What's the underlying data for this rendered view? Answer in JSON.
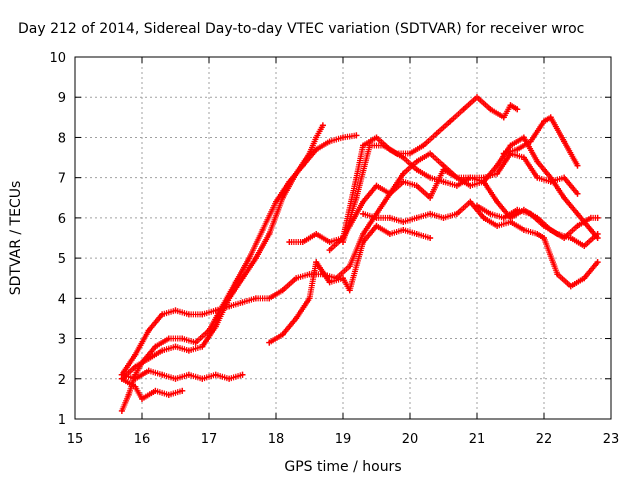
{
  "chart_data": {
    "type": "scatter",
    "title": "Day 212 of 2014, Sidereal Day-to-day VTEC variation (SDTVAR) for receiver wroc",
    "xlabel": "GPS time / hours",
    "ylabel": "SDTVAR / TECUs",
    "xlim": [
      15,
      23
    ],
    "ylim": [
      1,
      10
    ],
    "xticks": [
      "15",
      "16",
      "17",
      "18",
      "19",
      "20",
      "21",
      "22",
      "23"
    ],
    "yticks": [
      "1",
      "2",
      "3",
      "4",
      "5",
      "6",
      "7",
      "8",
      "9",
      "10"
    ],
    "grid": true,
    "marker": "+",
    "color": "#ff0000",
    "series": [
      {
        "name": "trace-1",
        "points": [
          [
            15.7,
            1.2
          ],
          [
            15.8,
            1.6
          ],
          [
            15.9,
            2.1
          ],
          [
            16.0,
            2.4
          ],
          [
            16.2,
            2.8
          ],
          [
            16.4,
            3.0
          ],
          [
            16.6,
            3.0
          ],
          [
            16.8,
            2.9
          ],
          [
            17.0,
            3.2
          ],
          [
            17.2,
            3.8
          ],
          [
            17.4,
            4.4
          ],
          [
            17.6,
            5.0
          ],
          [
            17.8,
            5.7
          ],
          [
            18.0,
            6.4
          ],
          [
            18.2,
            6.9
          ],
          [
            18.4,
            7.3
          ],
          [
            18.6,
            7.7
          ],
          [
            18.8,
            7.9
          ],
          [
            19.0,
            8.0
          ],
          [
            19.2,
            8.05
          ]
        ]
      },
      {
        "name": "trace-2",
        "points": [
          [
            15.7,
            2.1
          ],
          [
            15.9,
            2.6
          ],
          [
            16.1,
            3.2
          ],
          [
            16.3,
            3.6
          ],
          [
            16.5,
            3.7
          ],
          [
            16.7,
            3.6
          ],
          [
            16.9,
            3.6
          ],
          [
            17.1,
            3.7
          ],
          [
            17.3,
            3.8
          ],
          [
            17.5,
            3.9
          ],
          [
            17.7,
            4.0
          ],
          [
            17.9,
            4.0
          ],
          [
            18.1,
            4.2
          ],
          [
            18.3,
            4.5
          ],
          [
            18.5,
            4.6
          ],
          [
            18.7,
            4.6
          ],
          [
            18.9,
            4.5
          ],
          [
            19.1,
            4.8
          ],
          [
            19.3,
            5.6
          ],
          [
            19.5,
            6.1
          ],
          [
            19.7,
            6.6
          ],
          [
            19.9,
            7.1
          ],
          [
            20.1,
            7.4
          ],
          [
            20.3,
            7.6
          ],
          [
            20.5,
            7.3
          ],
          [
            20.7,
            7.0
          ],
          [
            20.9,
            6.8
          ],
          [
            21.1,
            6.9
          ],
          [
            21.3,
            6.4
          ],
          [
            21.5,
            6.0
          ],
          [
            21.7,
            6.2
          ],
          [
            21.9,
            6.0
          ],
          [
            22.1,
            5.7
          ],
          [
            22.3,
            5.5
          ],
          [
            22.5,
            5.8
          ],
          [
            22.7,
            6.0
          ],
          [
            22.8,
            6.0
          ]
        ]
      },
      {
        "name": "trace-3",
        "points": [
          [
            15.7,
            2.0
          ],
          [
            15.9,
            2.3
          ],
          [
            16.1,
            2.5
          ],
          [
            16.3,
            2.7
          ],
          [
            16.5,
            2.8
          ],
          [
            16.7,
            2.7
          ],
          [
            16.9,
            2.8
          ],
          [
            17.1,
            3.3
          ],
          [
            17.3,
            4.0
          ],
          [
            17.5,
            4.5
          ],
          [
            17.7,
            5.0
          ],
          [
            17.9,
            5.6
          ],
          [
            18.1,
            6.5
          ],
          [
            18.3,
            7.1
          ],
          [
            18.5,
            7.6
          ],
          [
            18.6,
            8.0
          ],
          [
            18.7,
            8.3
          ]
        ]
      },
      {
        "name": "trace-4",
        "points": [
          [
            15.7,
            2.0
          ],
          [
            15.9,
            1.8
          ],
          [
            16.0,
            1.5
          ],
          [
            16.2,
            1.7
          ],
          [
            16.4,
            1.6
          ],
          [
            16.6,
            1.7
          ]
        ]
      },
      {
        "name": "trace-5",
        "points": [
          [
            15.7,
            2.1
          ],
          [
            15.9,
            2.0
          ],
          [
            16.1,
            2.2
          ],
          [
            16.3,
            2.1
          ],
          [
            16.5,
            2.0
          ],
          [
            16.7,
            2.1
          ],
          [
            16.9,
            2.0
          ],
          [
            17.1,
            2.1
          ],
          [
            17.3,
            2.0
          ],
          [
            17.5,
            2.1
          ]
        ]
      },
      {
        "name": "trace-6",
        "points": [
          [
            17.9,
            2.9
          ],
          [
            18.1,
            3.1
          ],
          [
            18.3,
            3.5
          ],
          [
            18.5,
            4.0
          ],
          [
            18.6,
            4.9
          ],
          [
            18.8,
            4.4
          ],
          [
            19.0,
            4.5
          ],
          [
            19.1,
            4.2
          ],
          [
            19.3,
            5.4
          ],
          [
            19.5,
            5.8
          ],
          [
            19.7,
            5.6
          ],
          [
            19.9,
            5.7
          ],
          [
            20.1,
            5.6
          ],
          [
            20.3,
            5.5
          ]
        ]
      },
      {
        "name": "trace-7",
        "points": [
          [
            18.2,
            5.4
          ],
          [
            18.4,
            5.4
          ],
          [
            18.6,
            5.6
          ],
          [
            18.8,
            5.4
          ],
          [
            19.0,
            5.5
          ],
          [
            19.1,
            5.8
          ],
          [
            19.3,
            6.4
          ],
          [
            19.5,
            6.8
          ],
          [
            19.7,
            6.6
          ],
          [
            19.9,
            6.9
          ],
          [
            20.1,
            6.8
          ],
          [
            20.3,
            6.5
          ],
          [
            20.5,
            7.2
          ],
          [
            20.7,
            7.0
          ],
          [
            20.9,
            7.0
          ],
          [
            21.1,
            7.0
          ],
          [
            21.3,
            7.1
          ],
          [
            21.5,
            7.6
          ],
          [
            21.7,
            7.5
          ],
          [
            21.9,
            7.0
          ],
          [
            22.1,
            6.9
          ],
          [
            22.3,
            7.0
          ],
          [
            22.5,
            6.6
          ]
        ]
      },
      {
        "name": "trace-8",
        "points": [
          [
            19.3,
            6.1
          ],
          [
            19.5,
            6.0
          ],
          [
            19.7,
            6.0
          ],
          [
            19.9,
            5.9
          ],
          [
            20.1,
            6.0
          ],
          [
            20.3,
            6.1
          ],
          [
            20.5,
            6.0
          ],
          [
            20.7,
            6.1
          ],
          [
            20.9,
            6.4
          ],
          [
            21.1,
            6.0
          ],
          [
            21.3,
            5.8
          ],
          [
            21.5,
            5.9
          ],
          [
            21.7,
            5.7
          ],
          [
            21.9,
            5.6
          ],
          [
            22.0,
            5.5
          ],
          [
            22.2,
            4.6
          ],
          [
            22.4,
            4.3
          ],
          [
            22.6,
            4.5
          ],
          [
            22.8,
            4.9
          ]
        ]
      },
      {
        "name": "trace-9",
        "points": [
          [
            19.0,
            5.4
          ],
          [
            19.2,
            6.5
          ],
          [
            19.4,
            7.8
          ],
          [
            19.6,
            7.8
          ],
          [
            19.8,
            7.6
          ],
          [
            20.0,
            7.6
          ],
          [
            20.2,
            7.8
          ],
          [
            20.4,
            8.1
          ],
          [
            20.6,
            8.4
          ],
          [
            20.8,
            8.7
          ],
          [
            21.0,
            9.0
          ],
          [
            21.2,
            8.7
          ],
          [
            21.4,
            8.5
          ],
          [
            21.5,
            8.8
          ],
          [
            21.6,
            8.7
          ]
        ]
      },
      {
        "name": "trace-10",
        "points": [
          [
            21.4,
            7.6
          ],
          [
            21.6,
            7.7
          ],
          [
            21.8,
            7.9
          ],
          [
            22.0,
            8.4
          ],
          [
            22.1,
            8.5
          ],
          [
            22.3,
            7.9
          ],
          [
            22.5,
            7.3
          ]
        ]
      },
      {
        "name": "trace-11",
        "points": [
          [
            18.8,
            5.2
          ],
          [
            19.0,
            5.5
          ],
          [
            19.2,
            7.0
          ],
          [
            19.3,
            7.8
          ],
          [
            19.5,
            8.0
          ],
          [
            19.7,
            7.7
          ],
          [
            19.9,
            7.5
          ],
          [
            20.1,
            7.2
          ],
          [
            20.3,
            7.0
          ],
          [
            20.5,
            6.9
          ],
          [
            20.7,
            6.8
          ],
          [
            20.9,
            7.0
          ],
          [
            21.1,
            6.9
          ],
          [
            21.3,
            7.3
          ],
          [
            21.5,
            7.8
          ],
          [
            21.7,
            8.0
          ],
          [
            21.9,
            7.4
          ],
          [
            22.1,
            7.0
          ],
          [
            22.3,
            6.5
          ],
          [
            22.5,
            6.1
          ],
          [
            22.7,
            5.7
          ],
          [
            22.8,
            5.5
          ]
        ]
      },
      {
        "name": "trace-12",
        "points": [
          [
            21.0,
            6.3
          ],
          [
            21.2,
            6.1
          ],
          [
            21.4,
            6.0
          ],
          [
            21.6,
            6.2
          ],
          [
            21.8,
            6.1
          ],
          [
            22.0,
            5.8
          ],
          [
            22.2,
            5.6
          ],
          [
            22.4,
            5.5
          ],
          [
            22.6,
            5.3
          ],
          [
            22.8,
            5.6
          ]
        ]
      }
    ]
  }
}
